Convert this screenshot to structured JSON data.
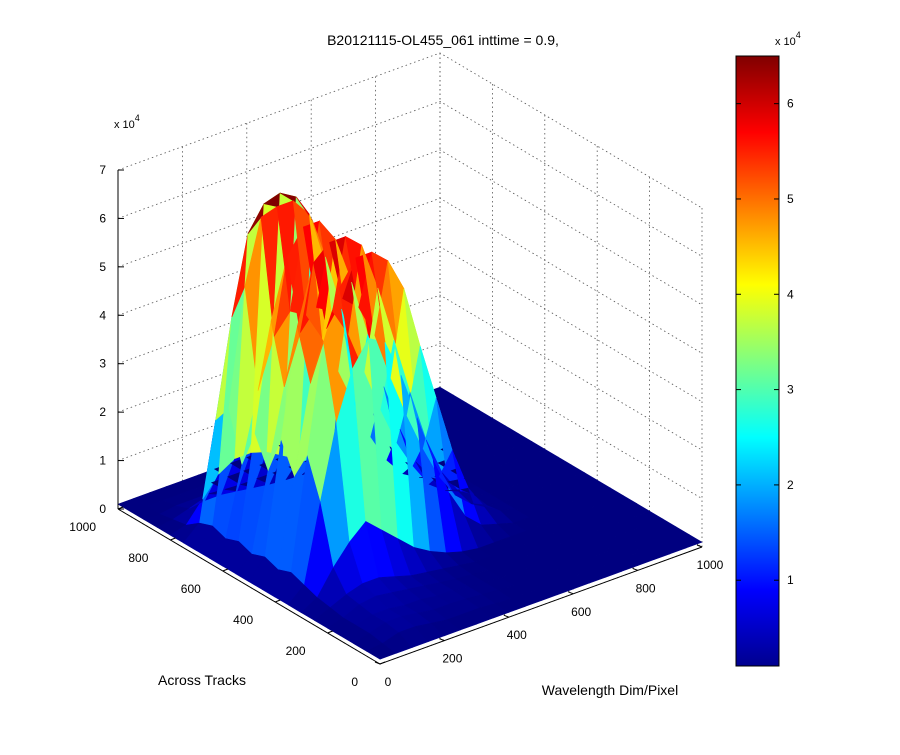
{
  "chart_data": {
    "type": "surface-3d",
    "title": "B20121115-OL455_061 inttime = 0.9,",
    "xlabel": "Wavelength Dim/Pixel",
    "ylabel": "Across Tracks",
    "zlabel": "",
    "xlim": [
      0,
      1000
    ],
    "ylim": [
      0,
      1000
    ],
    "zlim": [
      0,
      70000
    ],
    "x_ticks": [
      "0",
      "200",
      "400",
      "600",
      "800",
      "1000"
    ],
    "y_ticks": [
      "0",
      "200",
      "400",
      "600",
      "800",
      "1000"
    ],
    "z_ticks": [
      "0",
      "1",
      "2",
      "3",
      "4",
      "5",
      "6",
      "7"
    ],
    "z_exponent": "x 10",
    "z_exponent_power": "4",
    "grid": true,
    "colormap": "jet",
    "colorbar": {
      "range": [
        1000,
        65000
      ],
      "ticks": [
        "1",
        "2",
        "3",
        "4",
        "5",
        "6"
      ],
      "exponent": "x 10",
      "exponent_power": "4",
      "position": "right"
    },
    "surface": {
      "grid_x": [
        0,
        50,
        100,
        150,
        200,
        250,
        300,
        350,
        400,
        450,
        500,
        550,
        600,
        650,
        700,
        750,
        800,
        850,
        900,
        950,
        1000
      ],
      "grid_y": [
        0,
        50,
        100,
        150,
        200,
        250,
        300,
        350,
        400,
        450,
        500,
        550,
        600,
        650,
        700,
        750,
        800,
        850,
        900,
        950,
        1000
      ],
      "z": [
        [
          1000,
          1000,
          1000,
          1000,
          1000,
          1000,
          1000,
          1000,
          1000,
          1000,
          1000,
          1000,
          1000,
          1000,
          1000,
          1000,
          1000,
          1000,
          1000,
          1000,
          1000
        ],
        [
          1000,
          1500,
          2500,
          2500,
          2000,
          1500,
          1500,
          1500,
          1200,
          1000,
          1000,
          1000,
          1000,
          1000,
          1000,
          1000,
          1000,
          1000,
          1000,
          1000,
          1000
        ],
        [
          1000,
          2000,
          3000,
          3000,
          2500,
          2000,
          2000,
          1800,
          1500,
          1200,
          1000,
          1000,
          1000,
          1000,
          1000,
          1000,
          1000,
          1000,
          1000,
          1000,
          1000
        ],
        [
          1000,
          2000,
          3000,
          3000,
          2500,
          2500,
          2000,
          2000,
          1500,
          1200,
          1000,
          1000,
          1000,
          1000,
          1000,
          1000,
          1000,
          1000,
          1000,
          1000,
          1000
        ],
        [
          1000,
          2000,
          3500,
          4000,
          3500,
          3000,
          2500,
          2000,
          1500,
          1200,
          1000,
          1000,
          1000,
          1000,
          1000,
          1000,
          1000,
          1000,
          1000,
          1000,
          1000
        ],
        [
          1000,
          2500,
          4000,
          5000,
          5000,
          4000,
          3000,
          2500,
          2000,
          1500,
          1000,
          1000,
          1000,
          1000,
          1000,
          1000,
          1000,
          1000,
          1000,
          1000,
          1000
        ],
        [
          1000,
          3000,
          8000,
          12000,
          15000,
          12000,
          9000,
          6000,
          4000,
          2500,
          1500,
          1000,
          1000,
          1000,
          1000,
          1000,
          1000,
          1000,
          1000,
          1000,
          1000
        ],
        [
          1000,
          4000,
          20000,
          35000,
          45000,
          50000,
          48000,
          40000,
          30000,
          20000,
          12000,
          6000,
          3000,
          2000,
          1000,
          1000,
          1000,
          1000,
          1000,
          1000,
          1000
        ],
        [
          1000,
          5000,
          28000,
          50000,
          60000,
          65000,
          65000,
          62000,
          55000,
          42000,
          30000,
          18000,
          9000,
          4000,
          2000,
          1000,
          1000,
          1000,
          1000,
          1000,
          1000
        ],
        [
          1000,
          4000,
          22000,
          40000,
          50000,
          55000,
          52000,
          45000,
          35000,
          26000,
          18000,
          11000,
          6000,
          3000,
          1500,
          1000,
          1000,
          1000,
          1000,
          1000,
          1000
        ],
        [
          1000,
          5000,
          28000,
          50000,
          62000,
          65000,
          65000,
          62000,
          52000,
          40000,
          28000,
          17000,
          9000,
          4000,
          2000,
          1000,
          1000,
          1000,
          1000,
          1000,
          1000
        ],
        [
          1000,
          4000,
          20000,
          36000,
          46000,
          50000,
          48000,
          42000,
          33000,
          24000,
          16000,
          10000,
          5000,
          2500,
          1500,
          1000,
          1000,
          1000,
          1000,
          1000,
          1000
        ],
        [
          1000,
          5000,
          26000,
          48000,
          60000,
          65000,
          65000,
          60000,
          50000,
          38000,
          26000,
          16000,
          8000,
          3500,
          1500,
          1000,
          1000,
          1000,
          1000,
          1000,
          1000
        ],
        [
          1000,
          4000,
          18000,
          32000,
          42000,
          46000,
          44000,
          38000,
          30000,
          22000,
          14000,
          8000,
          4000,
          2000,
          1000,
          1000,
          1000,
          1000,
          1000,
          1000,
          1000
        ],
        [
          1000,
          5000,
          28000,
          52000,
          65000,
          66000,
          66000,
          62000,
          52000,
          40000,
          28000,
          16000,
          8000,
          3500,
          1500,
          1000,
          1000,
          1000,
          1000,
          1000,
          1000
        ],
        [
          1000,
          4000,
          24000,
          44000,
          60000,
          65000,
          66000,
          64000,
          58000,
          46000,
          32000,
          18000,
          8000,
          3000,
          1500,
          1000,
          1000,
          1000,
          1000,
          1000,
          1000
        ],
        [
          1000,
          2000,
          6000,
          10000,
          12000,
          12000,
          11000,
          9000,
          7000,
          5000,
          3000,
          2000,
          1200,
          1000,
          1000,
          1000,
          1000,
          1000,
          1000,
          1000,
          1000
        ],
        [
          1000,
          1500,
          2500,
          3000,
          3000,
          2500,
          2000,
          1500,
          1200,
          1000,
          1000,
          1000,
          1000,
          1000,
          1000,
          1000,
          1000,
          1000,
          1000,
          1000,
          1000
        ],
        [
          1000,
          1000,
          1500,
          1500,
          1500,
          1200,
          1000,
          1000,
          1000,
          1000,
          1000,
          1000,
          1000,
          1000,
          1000,
          1000,
          1000,
          1000,
          1000,
          1000,
          1000
        ],
        [
          1000,
          1000,
          1000,
          1000,
          1000,
          1000,
          1000,
          1000,
          1000,
          1000,
          1000,
          1000,
          1000,
          1000,
          1000,
          1000,
          1000,
          1000,
          1000,
          1000,
          1000
        ],
        [
          1000,
          1000,
          1000,
          1000,
          1000,
          1000,
          1000,
          1000,
          1000,
          1000,
          1000,
          1000,
          1000,
          1000,
          1000,
          1000,
          1000,
          1000,
          1000,
          1000,
          1000
        ]
      ]
    }
  }
}
